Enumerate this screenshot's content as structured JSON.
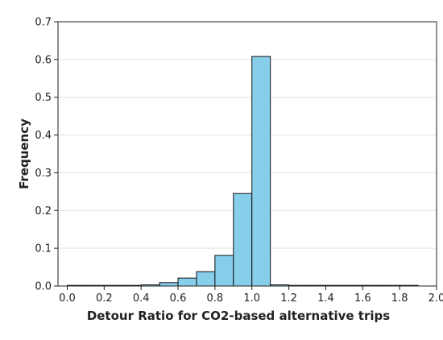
{
  "chart_data": {
    "type": "bar",
    "title": "",
    "xlabel": "Detour Ratio for CO2-based alternative trips",
    "ylabel": "Frequency",
    "xlim": [
      -0.05,
      2.0
    ],
    "ylim": [
      0,
      0.7
    ],
    "xticks": [
      "0.0",
      "0.2",
      "0.4",
      "0.6",
      "0.8",
      "1.0",
      "1.2",
      "1.4",
      "1.6",
      "1.8",
      "2.0"
    ],
    "yticks": [
      "0.0",
      "0.1",
      "0.2",
      "0.3",
      "0.4",
      "0.5",
      "0.6",
      "0.7"
    ],
    "grid": true,
    "bin_edges": [
      0.0,
      0.1,
      0.2,
      0.3,
      0.4,
      0.5,
      0.6,
      0.7,
      0.8,
      0.9,
      1.0,
      1.1,
      1.2,
      1.3,
      1.4,
      1.5,
      1.6,
      1.7,
      1.8,
      1.9
    ],
    "values": [
      0.0,
      0.0,
      0.0,
      0.0,
      0.003,
      0.009,
      0.021,
      0.038,
      0.081,
      0.245,
      0.608,
      0.003,
      0.0,
      0.0,
      0.0,
      0.0,
      0.0,
      0.0,
      0.0
    ],
    "bar_color": "#87CEEB",
    "edge_color": "#111111"
  }
}
